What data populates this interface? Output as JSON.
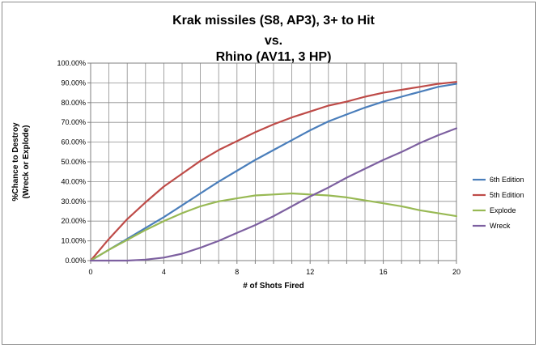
{
  "chart_data": {
    "type": "line",
    "title_lines": [
      "Krak missiles (S8, AP3), 3+ to Hit",
      "vs.",
      "Rhino (AV11, 3 HP)"
    ],
    "xlabel": "# of Shots Fired",
    "ylabel_lines": [
      "%Chance to Destroy",
      "(Wreck or Explode)"
    ],
    "xlim": [
      0,
      20
    ],
    "ylim": [
      0,
      100
    ],
    "x_ticks": [
      0,
      4,
      8,
      12,
      16,
      20
    ],
    "y_ticks": [
      "0.00%",
      "10.00%",
      "20.00%",
      "30.00%",
      "40.00%",
      "50.00%",
      "60.00%",
      "70.00%",
      "80.00%",
      "90.00%",
      "100.00%"
    ],
    "grid": true,
    "legend_position": "right",
    "x": [
      0,
      1,
      2,
      3,
      4,
      5,
      6,
      7,
      8,
      9,
      10,
      11,
      12,
      13,
      14,
      15,
      16,
      17,
      18,
      19,
      20
    ],
    "series": [
      {
        "name": "6th Edition",
        "color": "#4a7ebb",
        "values": [
          0,
          5.5,
          11,
          16.5,
          22,
          28,
          34,
          40,
          45.5,
          51,
          56,
          61,
          66,
          70.5,
          74,
          77.5,
          80.5,
          83,
          85.5,
          88,
          89.5
        ]
      },
      {
        "name": "5th Edition",
        "color": "#be4b48",
        "values": [
          0,
          11,
          21,
          29.5,
          37.5,
          44,
          50.5,
          56,
          60.5,
          65,
          69,
          72.5,
          75.5,
          78.5,
          80.5,
          83,
          85,
          86.5,
          88,
          89.5,
          90.5
        ]
      },
      {
        "name": "Explode",
        "color": "#98b954",
        "values": [
          0,
          5.5,
          10.5,
          15.5,
          20,
          24,
          27.5,
          30,
          31.5,
          33,
          33.5,
          34,
          33.5,
          33,
          32,
          30.5,
          29,
          27.5,
          25.5,
          24,
          22.5
        ]
      },
      {
        "name": "Wreck",
        "color": "#7d60a0",
        "values": [
          0,
          0,
          0,
          0.5,
          1.5,
          3.5,
          6.5,
          10,
          14,
          18,
          22.5,
          27.5,
          32.5,
          37,
          42,
          46.5,
          51,
          55,
          59.5,
          63.5,
          67
        ]
      }
    ]
  }
}
